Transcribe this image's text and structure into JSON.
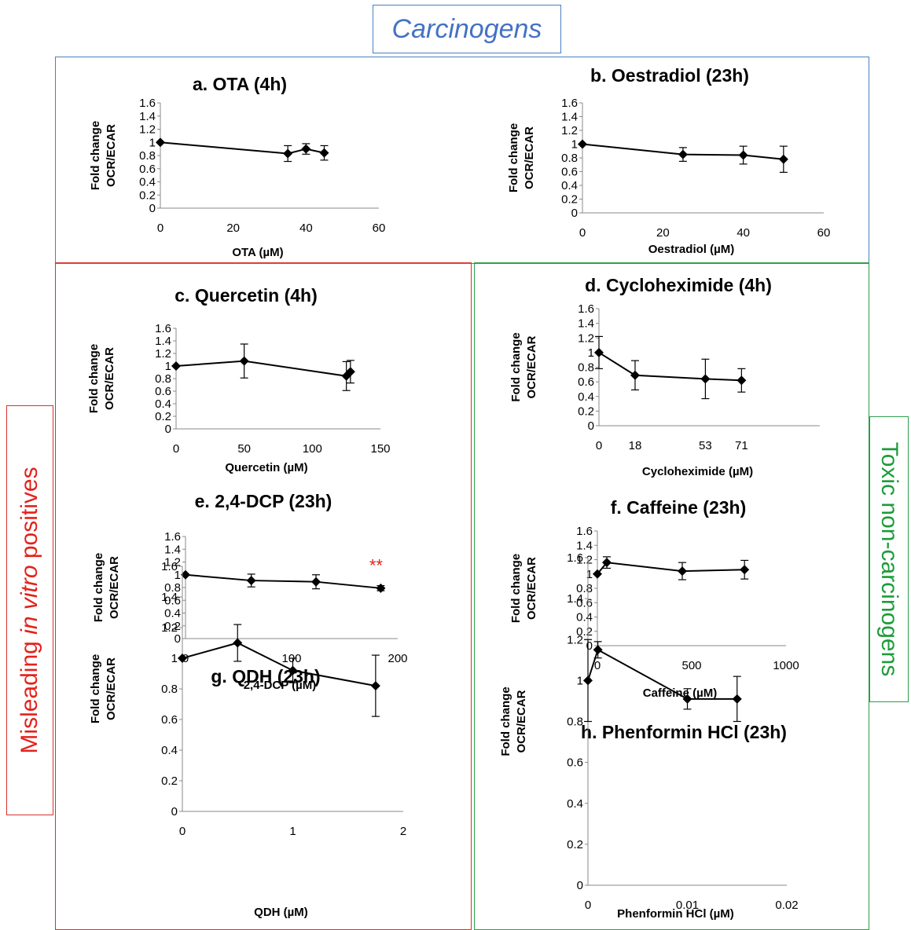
{
  "header": {
    "label": "Carcinogens"
  },
  "side_labels": {
    "left": {
      "prefix": "Misleading ",
      "italic": "in vitro",
      "suffix": " positives"
    },
    "right": {
      "label": "Toxic non-carcinogens"
    }
  },
  "colors": {
    "carcinogens_border": "#4a7fc1",
    "misleading_border": "#d9312c",
    "toxic_border": "#2e9e4b",
    "significance": "#e3221b"
  },
  "chart_data": [
    {
      "id": "a",
      "type": "line",
      "title": "a. OTA (4h)",
      "xlabel": "OTA (µM)",
      "ylabel": [
        "Fold change",
        "OCR/ECAR"
      ],
      "xlim": [
        0,
        60
      ],
      "xticks": [
        "0",
        "20",
        "40",
        "60"
      ],
      "ylim": [
        0,
        1.6
      ],
      "yticks": [
        "0",
        "0.2",
        "0.4",
        "0.6",
        "0.8",
        "1",
        "1.2",
        "1.4",
        "1.6"
      ],
      "x": [
        0,
        35,
        40,
        45
      ],
      "y": [
        1.0,
        0.83,
        0.9,
        0.84
      ],
      "err": [
        0,
        0.12,
        0.08,
        0.11
      ]
    },
    {
      "id": "b",
      "type": "line",
      "title": "b. Oestradiol (23h)",
      "xlabel": "Oestradiol (µM)",
      "ylabel": [
        "Fold change",
        "OCR/ECAR"
      ],
      "xlim": [
        0,
        60
      ],
      "xticks": [
        "0",
        "20",
        "40",
        "60"
      ],
      "ylim": [
        0,
        1.6
      ],
      "yticks": [
        "0",
        "0.2",
        "0.4",
        "0.6",
        "0.8",
        "1",
        "1.2",
        "1.4",
        "1.6"
      ],
      "x": [
        0,
        25,
        40,
        50
      ],
      "y": [
        1.0,
        0.85,
        0.84,
        0.78
      ],
      "err": [
        0,
        0.1,
        0.13,
        0.19
      ]
    },
    {
      "id": "c",
      "type": "line",
      "title": "c. Quercetin (4h)",
      "xlabel": "Quercetin (µM)",
      "ylabel": [
        "Fold change",
        "OCR/ECAR"
      ],
      "xlim": [
        0,
        150
      ],
      "xticks": [
        "0",
        "50",
        "100",
        "150"
      ],
      "ylim": [
        0,
        1.6
      ],
      "yticks": [
        "0",
        "0.2",
        "0.4",
        "0.6",
        "0.8",
        "1",
        "1.2",
        "1.4",
        "1.6"
      ],
      "x": [
        0,
        50,
        125,
        128
      ],
      "y": [
        1.0,
        1.08,
        0.84,
        0.91
      ],
      "err": [
        0,
        0.27,
        0.23,
        0.18
      ]
    },
    {
      "id": "d",
      "type": "line",
      "title": "d. Cycloheximide (4h)",
      "xlabel": "Cycloheximide (µM)",
      "ylabel": [
        "Fold change",
        "OCR/ECAR"
      ],
      "xlim": [
        0,
        110
      ],
      "xticks": [
        "0",
        "18",
        "53",
        "71"
      ],
      "xtickvals": [
        0,
        18,
        53,
        71
      ],
      "ylim": [
        0,
        1.6
      ],
      "yticks": [
        "0",
        "0.2",
        "0.4",
        "0.6",
        "0.8",
        "1",
        "1.2",
        "1.4",
        "1.6"
      ],
      "x": [
        0,
        18,
        53,
        71
      ],
      "y": [
        1.0,
        0.69,
        0.64,
        0.62
      ],
      "err": [
        0.22,
        0.2,
        0.27,
        0.16
      ]
    },
    {
      "id": "e",
      "type": "line",
      "title": "e. 2,4-DCP (23h)",
      "xlabel": "2,4-DCP (µM)",
      "ylabel": [
        "Fold change",
        "OCR/ECAR"
      ],
      "xlim": [
        0,
        200
      ],
      "xticks": [
        "0",
        "100",
        "200"
      ],
      "ylim": [
        0,
        1.6
      ],
      "yticks": [
        "0",
        "0.2",
        "0.4",
        "0.6",
        "0.8",
        "1",
        "1.2",
        "1.4",
        "1.6"
      ],
      "x": [
        0,
        62,
        123,
        184
      ],
      "y": [
        1.0,
        0.91,
        0.89,
        0.79
      ],
      "err": [
        0,
        0.1,
        0.11,
        0.04
      ],
      "annotation": {
        "text": "**",
        "x": 184,
        "y": 1.15
      }
    },
    {
      "id": "f",
      "type": "line",
      "title": "f. Caffeine (23h)",
      "xlabel": "Caffeine (µM)",
      "ylabel": [
        "Fold change",
        "OCR/ECAR"
      ],
      "xlim": [
        0,
        1000
      ],
      "xticks": [
        "0",
        "500",
        "1000"
      ],
      "ylim": [
        0,
        1.6
      ],
      "yticks": [
        "0",
        "0.2",
        "0.4",
        "0.6",
        "0.8",
        "1",
        "1.2",
        "1.4",
        "1.6"
      ],
      "x": [
        0,
        50,
        450,
        780
      ],
      "y": [
        1.0,
        1.16,
        1.04,
        1.06
      ],
      "err": [
        0,
        0.08,
        0.12,
        0.13
      ]
    },
    {
      "id": "g",
      "type": "line",
      "title": "g. QDH (23h)",
      "xlabel": "QDH (µM)",
      "ylabel": [
        "Fold change",
        "OCR/ECAR"
      ],
      "xlim": [
        0,
        2
      ],
      "xticks": [
        "0",
        "1",
        "2"
      ],
      "ylim": [
        0,
        1.6
      ],
      "yticks": [
        "0",
        "0.2",
        "0.4",
        "0.6",
        "0.8",
        "1",
        "1.2",
        "1.4",
        "1.6"
      ],
      "x": [
        0,
        0.5,
        1.0,
        1.75
      ],
      "y": [
        1.0,
        1.1,
        0.92,
        0.82
      ],
      "err": [
        0,
        0.12,
        0.08,
        0.2
      ]
    },
    {
      "id": "h",
      "type": "line",
      "title": "h. Phenformin HCl (23h)",
      "xlabel": "Phenformin HCl (µM)",
      "ylabel": [
        "Fold change",
        "OCR/ECAR"
      ],
      "xlim": [
        0,
        0.02
      ],
      "xticks": [
        "0",
        "0.01",
        "0.02"
      ],
      "ylim": [
        0,
        1.6
      ],
      "yticks": [
        "0",
        "0.2",
        "0.4",
        "0.6",
        "0.8",
        "1",
        "1.2",
        "1.4",
        "1.6"
      ],
      "x": [
        0,
        0.001,
        0.01,
        0.015
      ],
      "y": [
        1.0,
        1.15,
        0.91,
        0.91
      ],
      "err": [
        0.2,
        0.04,
        0.05,
        0.11
      ]
    }
  ]
}
